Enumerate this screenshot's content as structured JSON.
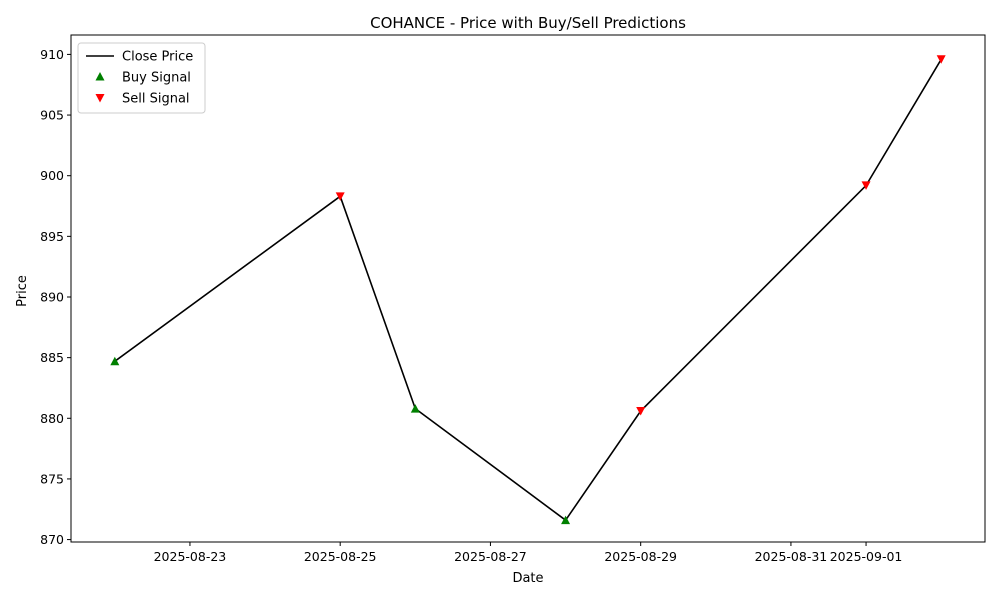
{
  "chart_data": {
    "type": "line",
    "title": "COHANCE - Price with Buy/Sell Predictions",
    "xlabel": "Date",
    "ylabel": "Price",
    "x_ticks": [
      "2025-08-23",
      "2025-08-25",
      "2025-08-27",
      "2025-08-29",
      "2025-08-31",
      "2025-09-01"
    ],
    "y_ticks": [
      870,
      875,
      880,
      885,
      890,
      895,
      900,
      905,
      910
    ],
    "xlim": [
      "2025-08-21T10:00",
      "2025-09-02T14:00"
    ],
    "ylim": [
      869.8,
      911.6
    ],
    "grid": false,
    "legend_position": "top-left",
    "series": [
      {
        "name": "Close Price",
        "kind": "line",
        "color": "#000000",
        "points": [
          {
            "date": "2025-08-22",
            "price": 884.7
          },
          {
            "date": "2025-08-25",
            "price": 898.3
          },
          {
            "date": "2025-08-26",
            "price": 880.8
          },
          {
            "date": "2025-08-28",
            "price": 871.6
          },
          {
            "date": "2025-08-29",
            "price": 880.6
          },
          {
            "date": "2025-09-01",
            "price": 899.2
          },
          {
            "date": "2025-09-02",
            "price": 909.6
          }
        ]
      },
      {
        "name": "Buy Signal",
        "kind": "marker-up",
        "color": "#008000",
        "points": [
          {
            "date": "2025-08-22",
            "price": 884.7
          },
          {
            "date": "2025-08-26",
            "price": 880.8
          },
          {
            "date": "2025-08-28",
            "price": 871.6
          }
        ]
      },
      {
        "name": "Sell Signal",
        "kind": "marker-down",
        "color": "#ff0000",
        "points": [
          {
            "date": "2025-08-25",
            "price": 898.3
          },
          {
            "date": "2025-08-29",
            "price": 880.6
          },
          {
            "date": "2025-09-01",
            "price": 899.2
          },
          {
            "date": "2025-09-02",
            "price": 909.6
          }
        ]
      }
    ]
  }
}
